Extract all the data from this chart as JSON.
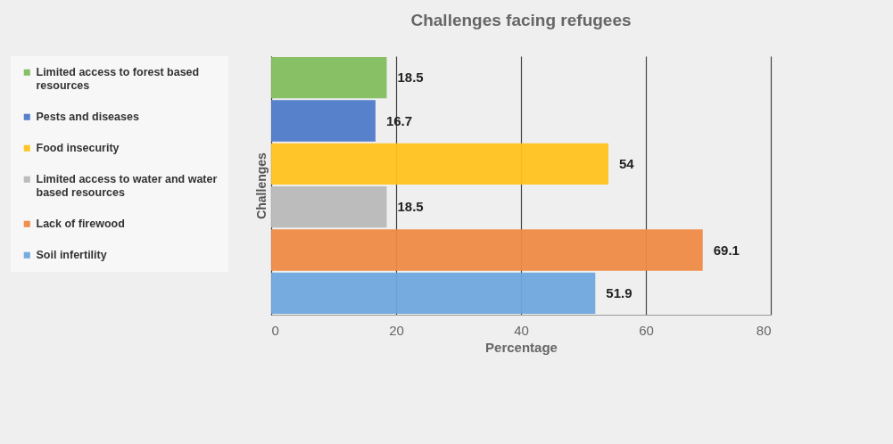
{
  "chart_data": {
    "type": "bar",
    "orientation": "horizontal",
    "title": "Challenges facing refugees",
    "xlabel": "Percentage",
    "ylabel": "Challenges",
    "categories": [
      null,
      null,
      null,
      null,
      null,
      null
    ],
    "series": [
      {
        "name": "Limited access to forest based resources",
        "color": "#82bd5e",
        "values": [
          18.5,
          null,
          null,
          null,
          null,
          null
        ]
      },
      {
        "name": "Pests and diseases",
        "color": "#4f7ac8",
        "values": [
          null,
          16.7,
          null,
          null,
          null,
          null
        ]
      },
      {
        "name": "Food insecurity",
        "color": "#ffc21e",
        "values": [
          null,
          null,
          54,
          null,
          null,
          null
        ]
      },
      {
        "name": "Limited access to water and water based resources",
        "color": "#b8b8b8",
        "values": [
          null,
          null,
          null,
          18.5,
          null,
          null
        ]
      },
      {
        "name": "Lack of firewood",
        "color": "#ef8a45",
        "values": [
          null,
          null,
          null,
          null,
          69.1,
          null
        ]
      },
      {
        "name": "Soil infertility",
        "color": "#6ea6dc",
        "values": [
          null,
          null,
          null,
          null,
          null,
          51.9
        ]
      }
    ],
    "xlim": [
      0,
      80
    ],
    "xticks": [
      0,
      20,
      40,
      60,
      80
    ],
    "grid": "x",
    "data_labels": true,
    "legend": "left",
    "tick_labels": "x"
  }
}
